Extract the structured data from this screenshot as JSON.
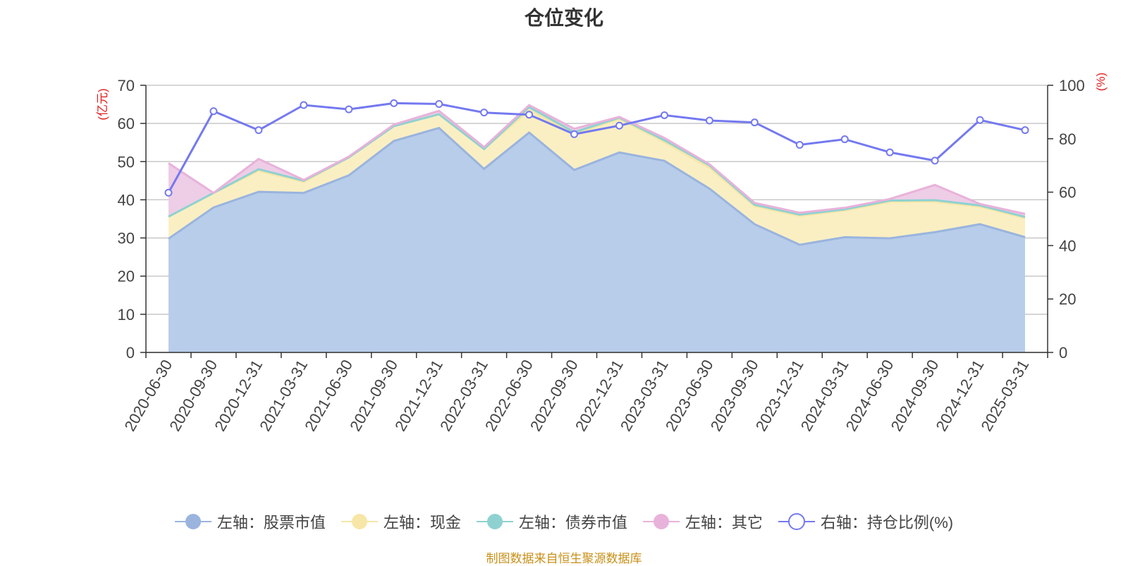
{
  "chart_data": {
    "type": "area",
    "title": "仓位变化",
    "y_left_label": "(亿元)",
    "y_right_label": "(%)",
    "y_left_lim": [
      0,
      70
    ],
    "y_left_ticks": [
      0,
      10,
      20,
      30,
      40,
      50,
      60,
      70
    ],
    "y_right_lim": [
      0,
      100
    ],
    "y_right_ticks": [
      0,
      20,
      40,
      60,
      80,
      100
    ],
    "grid": true,
    "stacked": true,
    "legend_position": "bottom",
    "categories": [
      "2020-06-30",
      "2020-09-30",
      "2020-12-31",
      "2021-03-31",
      "2021-06-30",
      "2021-09-30",
      "2021-12-31",
      "2022-03-31",
      "2022-06-30",
      "2022-09-30",
      "2022-12-31",
      "2023-03-31",
      "2023-06-30",
      "2023-09-30",
      "2023-12-31",
      "2024-03-31",
      "2024-06-30",
      "2024-09-30",
      "2024-12-31",
      "2025-03-31"
    ],
    "series": [
      {
        "name": "左轴：股票市值",
        "axis": "left",
        "color": "#9ab4de",
        "fill": "#b8cdea",
        "values": [
          29.8,
          38.0,
          42.1,
          41.8,
          46.4,
          55.4,
          58.8,
          48.1,
          57.6,
          47.8,
          52.4,
          50.2,
          42.9,
          33.6,
          28.2,
          30.2,
          29.9,
          31.5,
          33.6,
          30.2
        ]
      },
      {
        "name": "左轴：现金",
        "axis": "left",
        "color": "#f7e6a6",
        "fill": "#faefc3",
        "values": [
          5.8,
          3.8,
          5.5,
          2.9,
          4.7,
          3.9,
          3.6,
          5.2,
          5.9,
          9.5,
          8.8,
          4.9,
          5.5,
          4.7,
          7.6,
          7.0,
          9.6,
          8.0,
          4.6,
          5.0
        ]
      },
      {
        "name": "左轴：债券市值",
        "axis": "left",
        "color": "#8fd1d1",
        "fill": "#c9eaea",
        "values": [
          0.0,
          0.0,
          0.4,
          0.3,
          0.0,
          0.0,
          0.0,
          0.0,
          0.8,
          0.4,
          0.3,
          0.5,
          0.6,
          0.4,
          0.3,
          0.3,
          0.3,
          0.4,
          0.3,
          0.3
        ]
      },
      {
        "name": "左轴：其它",
        "axis": "left",
        "color": "#e8b2da",
        "fill": "#eecde6",
        "values": [
          14.0,
          0.0,
          2.7,
          0.2,
          0.2,
          0.4,
          0.9,
          0.5,
          0.5,
          0.9,
          0.2,
          0.6,
          0.3,
          0.5,
          0.5,
          0.4,
          0.4,
          4.0,
          0.4,
          0.8
        ]
      },
      {
        "name": "右轴：持仓比例(%)",
        "axis": "right",
        "color": "#7479ef",
        "values": [
          59.8,
          90.3,
          83.2,
          92.6,
          91.0,
          93.3,
          93.0,
          89.8,
          89.0,
          81.7,
          84.9,
          88.8,
          86.8,
          86.1,
          77.7,
          79.8,
          74.9,
          71.8,
          87.0,
          83.2
        ]
      }
    ]
  },
  "source_note": "制图数据来自恒生聚源数据库"
}
